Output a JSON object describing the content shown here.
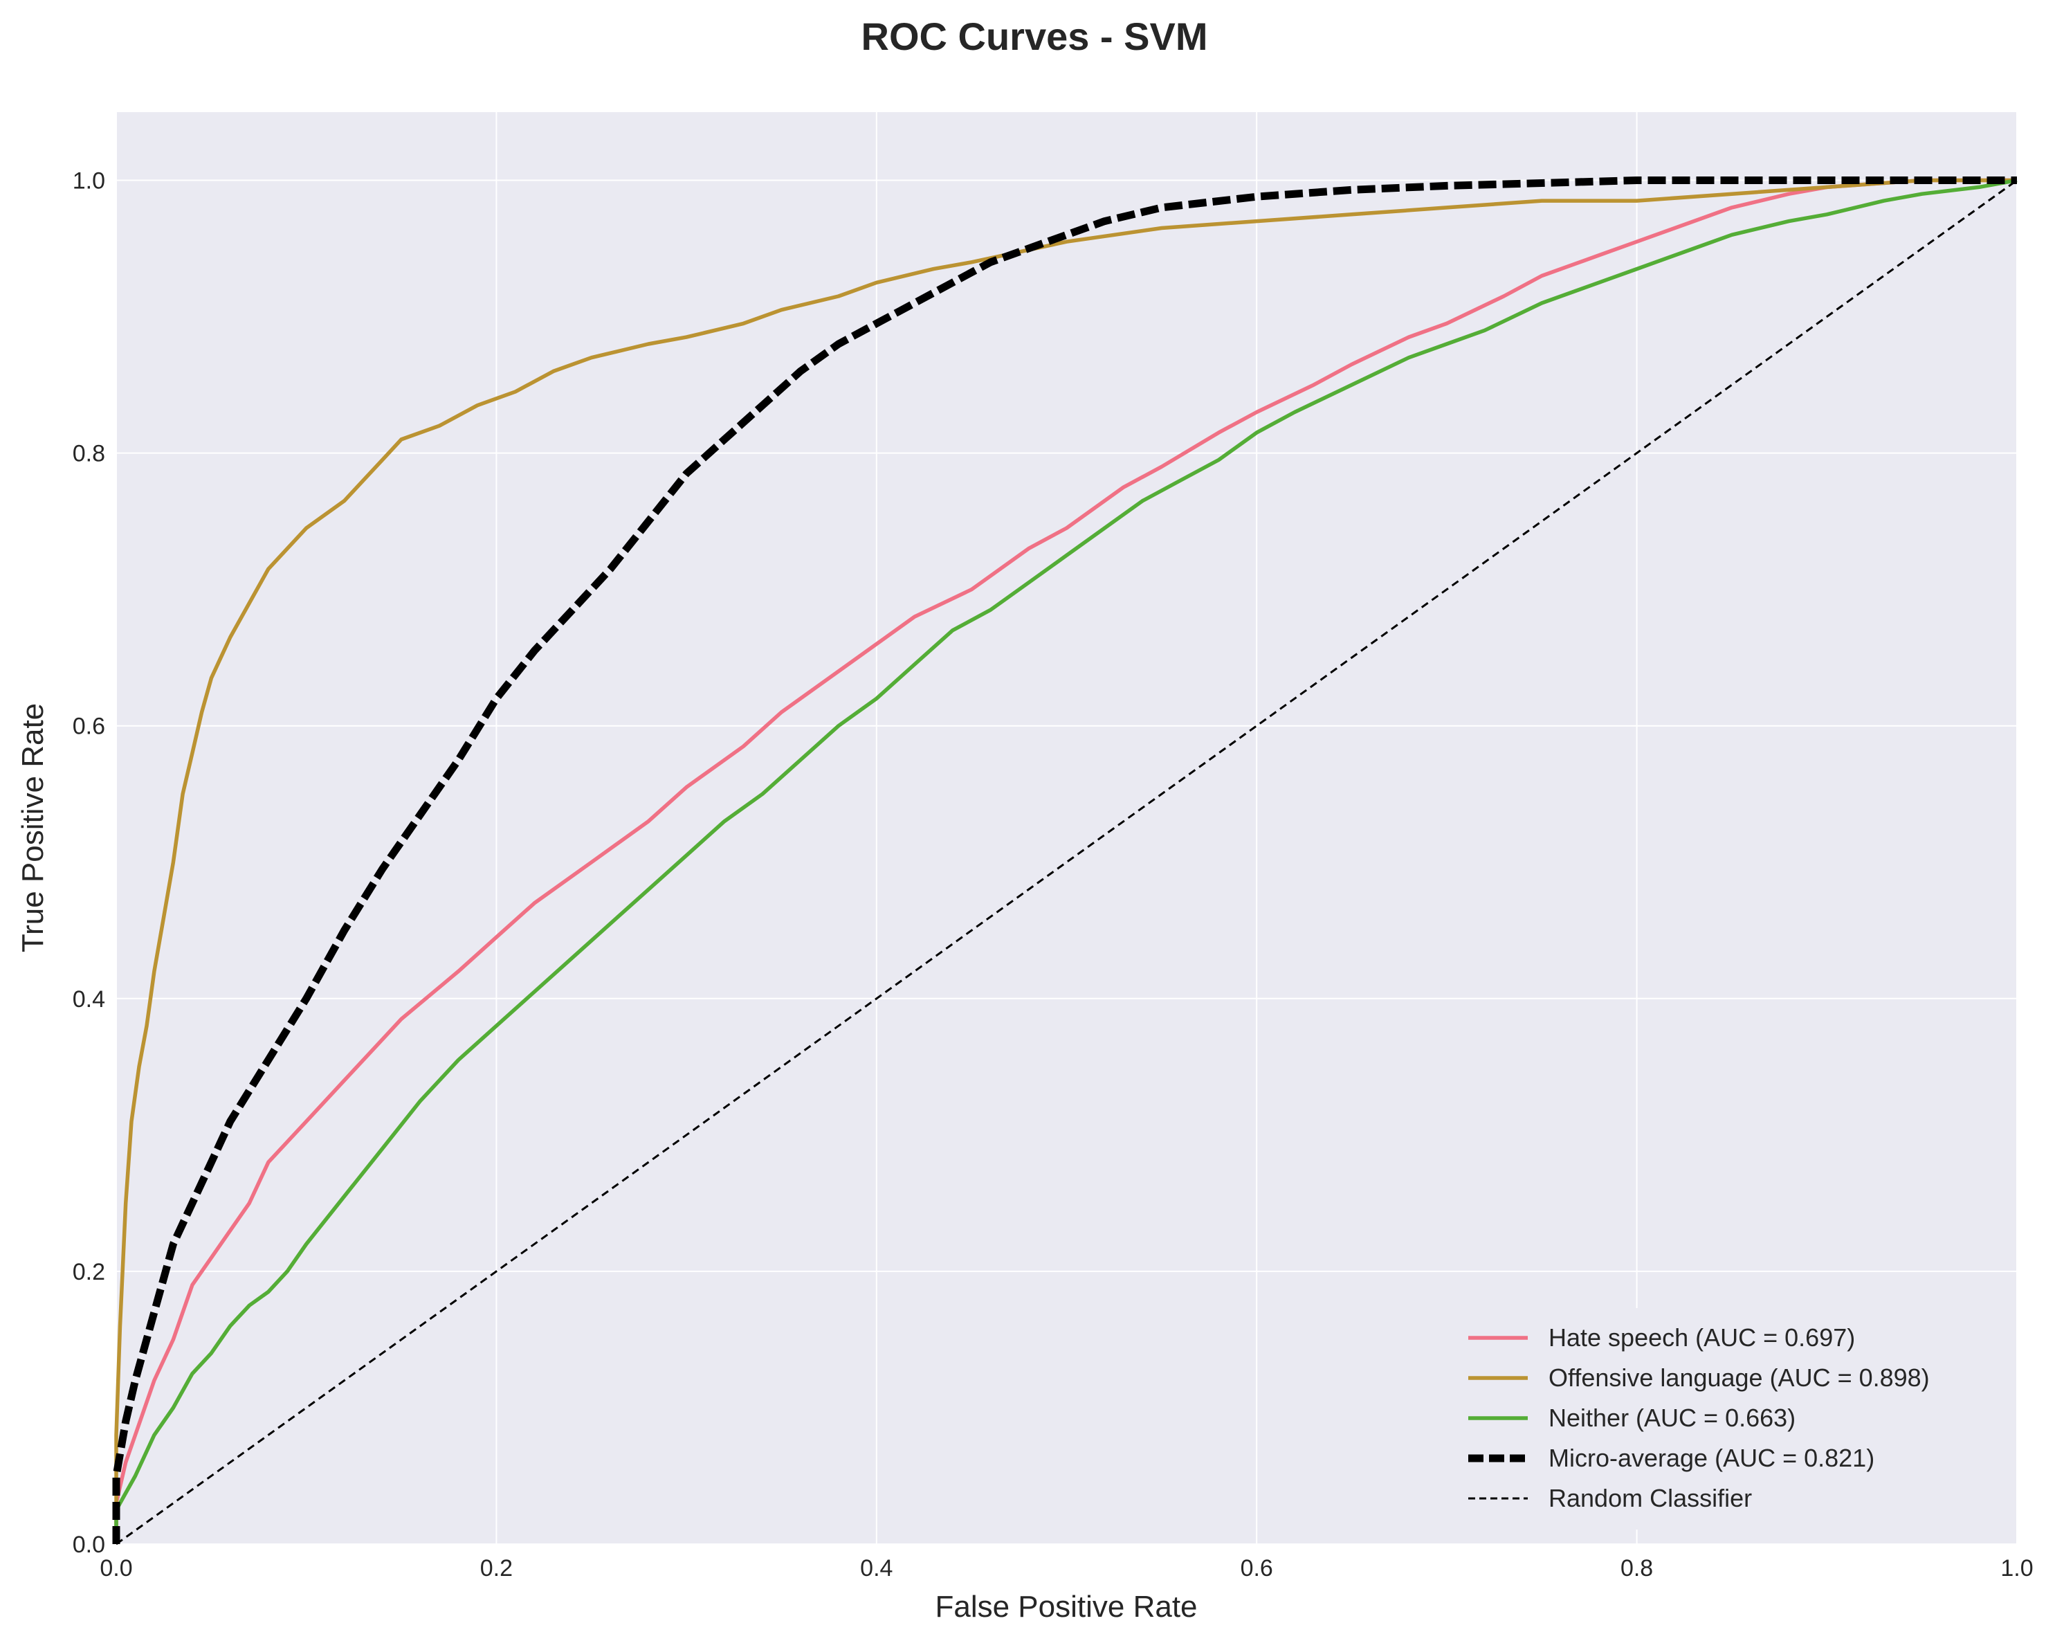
{
  "chart_data": {
    "type": "line",
    "title": "ROC Curves - SVM",
    "xlabel": "False Positive Rate",
    "ylabel": "True Positive Rate",
    "xlim": [
      0.0,
      1.0
    ],
    "ylim": [
      0.0,
      1.05
    ],
    "x_ticks": [
      "0.0",
      "0.2",
      "0.4",
      "0.6",
      "0.8",
      "1.0"
    ],
    "y_ticks": [
      "0.0",
      "0.2",
      "0.4",
      "0.6",
      "0.8",
      "1.0"
    ],
    "grid": true,
    "legend_position": "lower-right",
    "series": [
      {
        "name": "Hate speech (AUC = 0.697)",
        "color": "#f07185",
        "style": "solid",
        "points": [
          [
            0,
            0
          ],
          [
            0,
            0.03
          ],
          [
            0.005,
            0.06
          ],
          [
            0.01,
            0.08
          ],
          [
            0.02,
            0.12
          ],
          [
            0.03,
            0.15
          ],
          [
            0.04,
            0.19
          ],
          [
            0.05,
            0.21
          ],
          [
            0.06,
            0.23
          ],
          [
            0.07,
            0.25
          ],
          [
            0.08,
            0.28
          ],
          [
            0.1,
            0.31
          ],
          [
            0.12,
            0.34
          ],
          [
            0.14,
            0.37
          ],
          [
            0.15,
            0.385
          ],
          [
            0.18,
            0.42
          ],
          [
            0.2,
            0.445
          ],
          [
            0.22,
            0.47
          ],
          [
            0.25,
            0.5
          ],
          [
            0.28,
            0.53
          ],
          [
            0.3,
            0.555
          ],
          [
            0.33,
            0.585
          ],
          [
            0.35,
            0.61
          ],
          [
            0.38,
            0.64
          ],
          [
            0.4,
            0.66
          ],
          [
            0.42,
            0.68
          ],
          [
            0.45,
            0.7
          ],
          [
            0.48,
            0.73
          ],
          [
            0.5,
            0.745
          ],
          [
            0.53,
            0.775
          ],
          [
            0.55,
            0.79
          ],
          [
            0.58,
            0.815
          ],
          [
            0.6,
            0.83
          ],
          [
            0.63,
            0.85
          ],
          [
            0.65,
            0.865
          ],
          [
            0.68,
            0.885
          ],
          [
            0.7,
            0.895
          ],
          [
            0.73,
            0.915
          ],
          [
            0.75,
            0.93
          ],
          [
            0.78,
            0.945
          ],
          [
            0.8,
            0.955
          ],
          [
            0.83,
            0.97
          ],
          [
            0.85,
            0.98
          ],
          [
            0.88,
            0.99
          ],
          [
            0.9,
            0.995
          ],
          [
            0.95,
            1.0
          ],
          [
            1.0,
            1.0
          ]
        ]
      },
      {
        "name": "Offensive language (AUC = 0.898)",
        "color": "#bb9332",
        "style": "solid",
        "points": [
          [
            0,
            0
          ],
          [
            0,
            0.08
          ],
          [
            0.002,
            0.16
          ],
          [
            0.005,
            0.25
          ],
          [
            0.008,
            0.31
          ],
          [
            0.012,
            0.35
          ],
          [
            0.016,
            0.38
          ],
          [
            0.02,
            0.42
          ],
          [
            0.025,
            0.46
          ],
          [
            0.03,
            0.5
          ],
          [
            0.035,
            0.55
          ],
          [
            0.04,
            0.58
          ],
          [
            0.045,
            0.61
          ],
          [
            0.05,
            0.635
          ],
          [
            0.06,
            0.665
          ],
          [
            0.07,
            0.69
          ],
          [
            0.08,
            0.715
          ],
          [
            0.09,
            0.73
          ],
          [
            0.1,
            0.745
          ],
          [
            0.12,
            0.765
          ],
          [
            0.13,
            0.78
          ],
          [
            0.14,
            0.795
          ],
          [
            0.15,
            0.81
          ],
          [
            0.17,
            0.82
          ],
          [
            0.19,
            0.835
          ],
          [
            0.21,
            0.845
          ],
          [
            0.23,
            0.86
          ],
          [
            0.25,
            0.87
          ],
          [
            0.28,
            0.88
          ],
          [
            0.3,
            0.885
          ],
          [
            0.33,
            0.895
          ],
          [
            0.35,
            0.905
          ],
          [
            0.38,
            0.915
          ],
          [
            0.4,
            0.925
          ],
          [
            0.43,
            0.935
          ],
          [
            0.45,
            0.94
          ],
          [
            0.5,
            0.955
          ],
          [
            0.55,
            0.965
          ],
          [
            0.6,
            0.97
          ],
          [
            0.65,
            0.975
          ],
          [
            0.7,
            0.98
          ],
          [
            0.75,
            0.985
          ],
          [
            0.8,
            0.985
          ],
          [
            0.85,
            0.99
          ],
          [
            0.9,
            0.995
          ],
          [
            0.95,
            1.0
          ],
          [
            1.0,
            1.0
          ]
        ]
      },
      {
        "name": "Neither (AUC = 0.663)",
        "color": "#54ad36",
        "style": "solid",
        "points": [
          [
            0,
            0
          ],
          [
            0,
            0.025
          ],
          [
            0.01,
            0.05
          ],
          [
            0.02,
            0.08
          ],
          [
            0.03,
            0.1
          ],
          [
            0.04,
            0.125
          ],
          [
            0.05,
            0.14
          ],
          [
            0.06,
            0.16
          ],
          [
            0.07,
            0.175
          ],
          [
            0.08,
            0.185
          ],
          [
            0.09,
            0.2
          ],
          [
            0.1,
            0.22
          ],
          [
            0.12,
            0.255
          ],
          [
            0.14,
            0.29
          ],
          [
            0.16,
            0.325
          ],
          [
            0.18,
            0.355
          ],
          [
            0.2,
            0.38
          ],
          [
            0.22,
            0.405
          ],
          [
            0.24,
            0.43
          ],
          [
            0.26,
            0.455
          ],
          [
            0.28,
            0.48
          ],
          [
            0.3,
            0.505
          ],
          [
            0.32,
            0.53
          ],
          [
            0.34,
            0.55
          ],
          [
            0.36,
            0.575
          ],
          [
            0.38,
            0.6
          ],
          [
            0.4,
            0.62
          ],
          [
            0.42,
            0.645
          ],
          [
            0.44,
            0.67
          ],
          [
            0.46,
            0.685
          ],
          [
            0.48,
            0.705
          ],
          [
            0.5,
            0.725
          ],
          [
            0.52,
            0.745
          ],
          [
            0.54,
            0.765
          ],
          [
            0.56,
            0.78
          ],
          [
            0.58,
            0.795
          ],
          [
            0.6,
            0.815
          ],
          [
            0.62,
            0.83
          ],
          [
            0.65,
            0.85
          ],
          [
            0.68,
            0.87
          ],
          [
            0.7,
            0.88
          ],
          [
            0.72,
            0.89
          ],
          [
            0.75,
            0.91
          ],
          [
            0.78,
            0.925
          ],
          [
            0.8,
            0.935
          ],
          [
            0.83,
            0.95
          ],
          [
            0.85,
            0.96
          ],
          [
            0.88,
            0.97
          ],
          [
            0.9,
            0.975
          ],
          [
            0.93,
            0.985
          ],
          [
            0.95,
            0.99
          ],
          [
            0.98,
            0.995
          ],
          [
            1.0,
            1.0
          ]
        ]
      },
      {
        "name": "Micro-average (AUC = 0.821)",
        "color": "#000000",
        "style": "dashed-thick",
        "points": [
          [
            0,
            0
          ],
          [
            0,
            0.05
          ],
          [
            0.005,
            0.09
          ],
          [
            0.01,
            0.12
          ],
          [
            0.02,
            0.17
          ],
          [
            0.03,
            0.22
          ],
          [
            0.04,
            0.25
          ],
          [
            0.05,
            0.28
          ],
          [
            0.06,
            0.31
          ],
          [
            0.08,
            0.355
          ],
          [
            0.1,
            0.4
          ],
          [
            0.12,
            0.45
          ],
          [
            0.14,
            0.495
          ],
          [
            0.16,
            0.535
          ],
          [
            0.18,
            0.575
          ],
          [
            0.2,
            0.62
          ],
          [
            0.22,
            0.655
          ],
          [
            0.24,
            0.685
          ],
          [
            0.26,
            0.715
          ],
          [
            0.28,
            0.75
          ],
          [
            0.3,
            0.785
          ],
          [
            0.32,
            0.81
          ],
          [
            0.34,
            0.835
          ],
          [
            0.36,
            0.86
          ],
          [
            0.38,
            0.88
          ],
          [
            0.4,
            0.895
          ],
          [
            0.42,
            0.91
          ],
          [
            0.44,
            0.925
          ],
          [
            0.46,
            0.94
          ],
          [
            0.48,
            0.95
          ],
          [
            0.5,
            0.96
          ],
          [
            0.52,
            0.97
          ],
          [
            0.55,
            0.98
          ],
          [
            0.6,
            0.988
          ],
          [
            0.65,
            0.993
          ],
          [
            0.7,
            0.996
          ],
          [
            0.75,
            0.998
          ],
          [
            0.8,
            1.0
          ],
          [
            0.9,
            1.0
          ],
          [
            1.0,
            1.0
          ]
        ]
      },
      {
        "name": "Random Classifier",
        "color": "#000000",
        "style": "dashed-thin",
        "points": [
          [
            0,
            0
          ],
          [
            1,
            1
          ]
        ]
      }
    ]
  }
}
